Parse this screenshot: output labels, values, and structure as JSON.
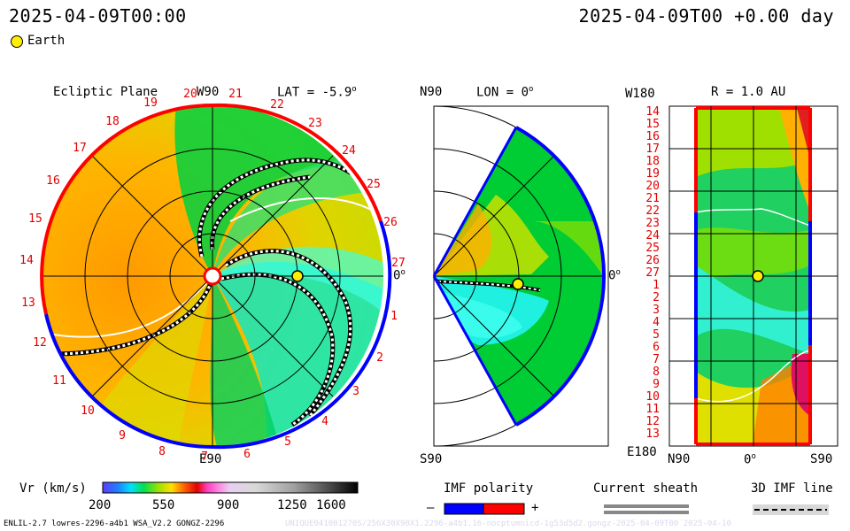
{
  "header": {
    "left_datetime": "2025-04-09T00:00",
    "right_datetime": "2025-04-09T00 +0.00 day"
  },
  "legend_top": {
    "marker_label": "Earth",
    "marker_color": "#ffee00"
  },
  "panels": {
    "ecliptic": {
      "title": "Ecliptic Plane",
      "top_label": "W90",
      "bottom_label": "E90",
      "right_label": "0",
      "lat_text": "LAT = -5.9",
      "day_ticks": [
        "20",
        "21",
        "22",
        "23",
        "24",
        "25",
        "26",
        "27",
        "1",
        "2",
        "3",
        "4",
        "5",
        "6",
        "7",
        "8",
        "9",
        "10",
        "11",
        "12",
        "13",
        "14",
        "15",
        "16",
        "17",
        "18",
        "19"
      ]
    },
    "meridional": {
      "top_label": "N90",
      "bottom_label": "S90",
      "right_label": "0",
      "lon_text": "LON = 0"
    },
    "radial": {
      "top_left_label": "W180",
      "bottom_left_label": "E180",
      "title": "R = 1.0 AU",
      "x_labels": [
        "N90",
        "0",
        "S90"
      ],
      "day_ticks": [
        "14",
        "15",
        "16",
        "17",
        "18",
        "19",
        "20",
        "21",
        "22",
        "23",
        "24",
        "25",
        "26",
        "27",
        "1",
        "2",
        "3",
        "4",
        "5",
        "6",
        "7",
        "8",
        "9",
        "10",
        "11",
        "12",
        "13"
      ]
    }
  },
  "colorbar": {
    "title": "Vr (km/s)",
    "ticks": [
      "200",
      "550",
      "900",
      "1250",
      "1600"
    ]
  },
  "imf": {
    "title": "IMF polarity",
    "minus": "–",
    "plus": "+",
    "neg_color": "#0000ff",
    "pos_color": "#ff0000"
  },
  "sheath": {
    "title": "Current sheath"
  },
  "imf3d": {
    "title": "3D IMF line"
  },
  "footer": {
    "model_info": "ENLIL-2.7 lowres-2296-a4b1 WSA_V2.2 GONGZ-2296",
    "watermark": "UNIQUE041001270S/256X30X90X1.2296-a4b1.16-nocptumnicd-1g53d5d2.gongz-2025-04-09T00  2025-04-10"
  }
}
